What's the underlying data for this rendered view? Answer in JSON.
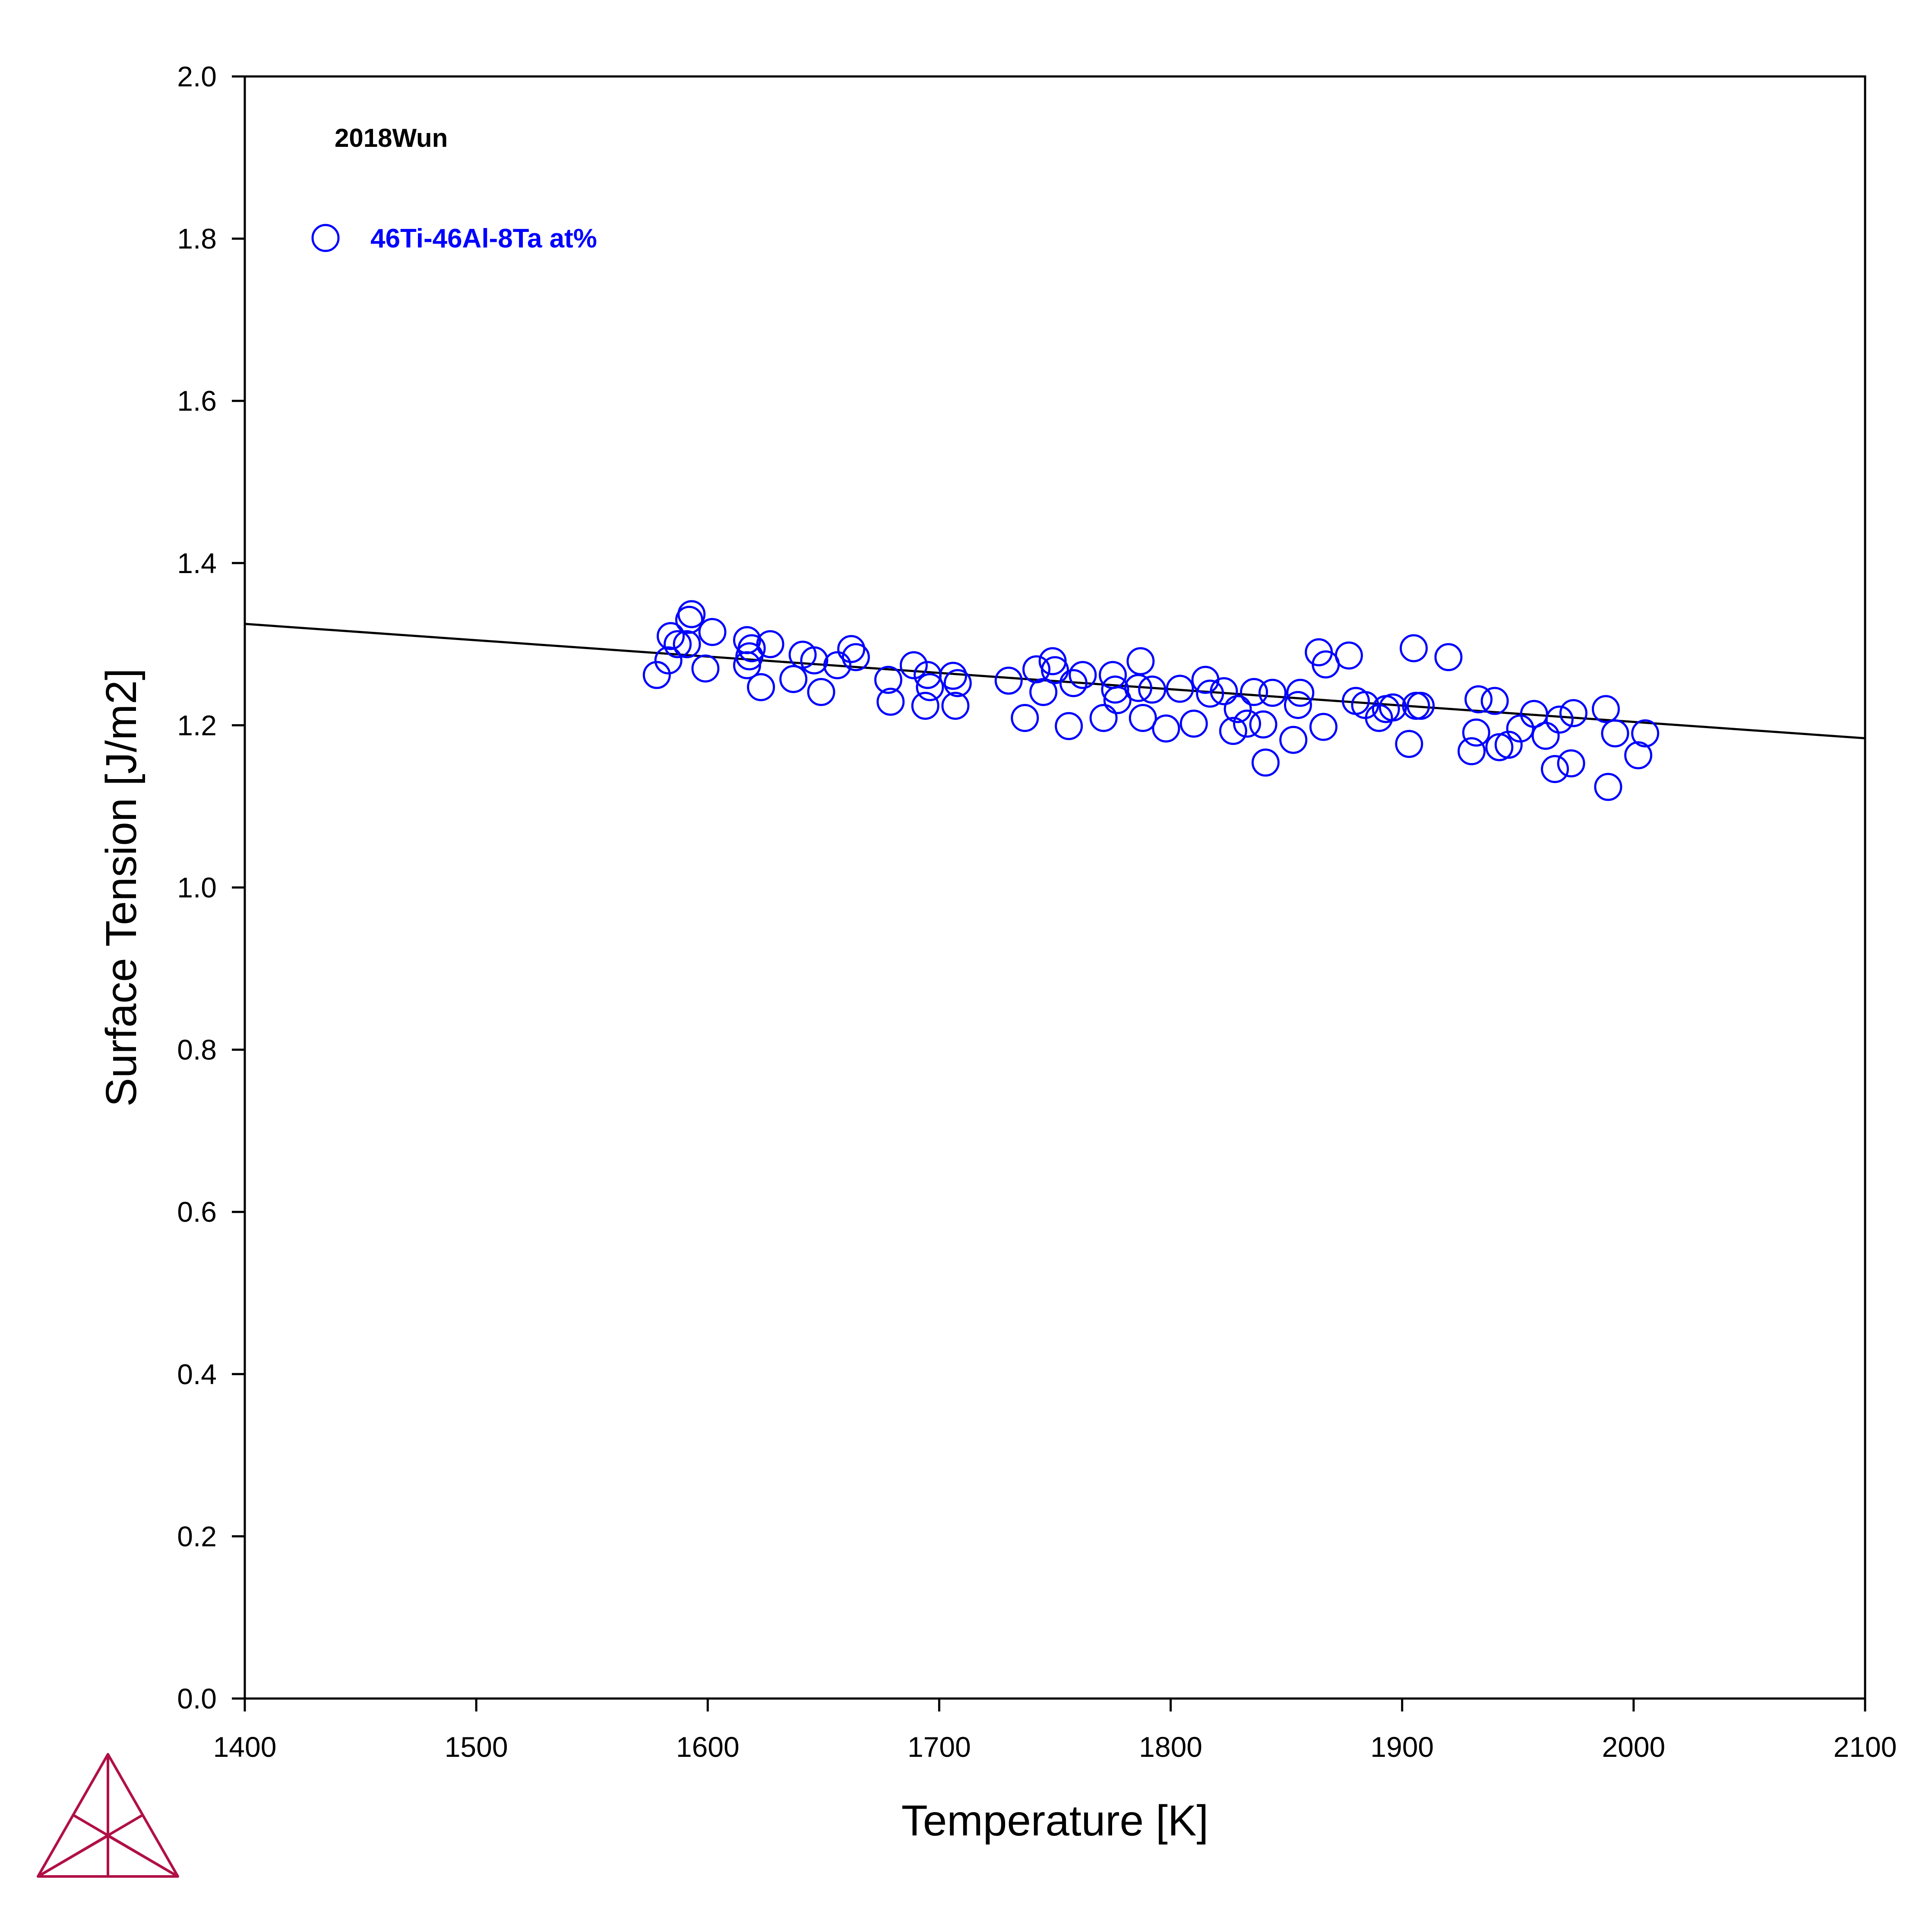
{
  "colors": {
    "background": "#ffffff",
    "axis": "#000000",
    "fit_line": "#000000",
    "markers": "#0000ff",
    "logo": "#b01045"
  },
  "logo": {
    "icon": "thermo-calc-triangle-logo"
  },
  "chart_data": {
    "type": "scatter",
    "title": "",
    "xlabel": "Temperature [K]",
    "ylabel": "Surface Tension [J/m2]",
    "xlim": [
      1400,
      2100
    ],
    "ylim": [
      0.0,
      2.0
    ],
    "x_ticks": [
      1400,
      1500,
      1600,
      1700,
      1800,
      1900,
      2000,
      2100
    ],
    "y_ticks": [
      0.0,
      0.2,
      0.4,
      0.6,
      0.8,
      1.0,
      1.2,
      1.4,
      1.6,
      1.8,
      2.0
    ],
    "x_tick_labels": [
      "1400",
      "1500",
      "1600",
      "1700",
      "1800",
      "1900",
      "2000",
      "2100"
    ],
    "y_tick_labels": [
      "0.0",
      "0.2",
      "0.4",
      "0.6",
      "0.8",
      "1.0",
      "1.2",
      "1.4",
      "1.6",
      "1.8",
      "2.0"
    ],
    "grid": false,
    "dataset_label": "2018Wun",
    "legend": {
      "position": "top-left",
      "entries": [
        "46Ti-46Al-8Ta at%"
      ]
    },
    "series": [
      {
        "name": "",
        "kind": "line",
        "x": [
          1400,
          2100
        ],
        "y": [
          1.325,
          1.184
        ]
      },
      {
        "name": "46Ti-46Al-8Ta at%",
        "kind": "scatter",
        "marker": "open-circle",
        "points": [
          [
            1578,
            1.262
          ],
          [
            1583,
            1.28
          ],
          [
            1584,
            1.31
          ],
          [
            1587,
            1.3
          ],
          [
            1591,
            1.3
          ],
          [
            1592,
            1.33
          ],
          [
            1593,
            1.337
          ],
          [
            1599,
            1.27
          ],
          [
            1602,
            1.315
          ],
          [
            1617,
            1.305
          ],
          [
            1617,
            1.274
          ],
          [
            1618,
            1.285
          ],
          [
            1619,
            1.295
          ],
          [
            1623,
            1.247
          ],
          [
            1627,
            1.3
          ],
          [
            1637,
            1.257
          ],
          [
            1641,
            1.287
          ],
          [
            1646,
            1.28
          ],
          [
            1649,
            1.241
          ],
          [
            1656,
            1.274
          ],
          [
            1662,
            1.294
          ],
          [
            1664,
            1.284
          ],
          [
            1678,
            1.256
          ],
          [
            1679,
            1.229
          ],
          [
            1689,
            1.274
          ],
          [
            1694,
            1.224
          ],
          [
            1695,
            1.262
          ],
          [
            1696,
            1.247
          ],
          [
            1706,
            1.261
          ],
          [
            1707,
            1.224
          ],
          [
            1708,
            1.252
          ],
          [
            1730,
            1.255
          ],
          [
            1737,
            1.209
          ],
          [
            1742,
            1.269
          ],
          [
            1745,
            1.241
          ],
          [
            1749,
            1.279
          ],
          [
            1750,
            1.268
          ],
          [
            1756,
            1.199
          ],
          [
            1758,
            1.252
          ],
          [
            1762,
            1.262
          ],
          [
            1771,
            1.209
          ],
          [
            1775,
            1.262
          ],
          [
            1776,
            1.244
          ],
          [
            1777,
            1.231
          ],
          [
            1786,
            1.246
          ],
          [
            1787,
            1.279
          ],
          [
            1788,
            1.209
          ],
          [
            1792,
            1.244
          ],
          [
            1798,
            1.196
          ],
          [
            1804,
            1.245
          ],
          [
            1810,
            1.202
          ],
          [
            1815,
            1.256
          ],
          [
            1817,
            1.239
          ],
          [
            1823,
            1.242
          ],
          [
            1827,
            1.193
          ],
          [
            1829,
            1.22
          ],
          [
            1833,
            1.202
          ],
          [
            1836,
            1.241
          ],
          [
            1840,
            1.201
          ],
          [
            1841,
            1.154
          ],
          [
            1844,
            1.24
          ],
          [
            1853,
            1.182
          ],
          [
            1855,
            1.225
          ],
          [
            1856,
            1.24
          ],
          [
            1864,
            1.29
          ],
          [
            1866,
            1.198
          ],
          [
            1867,
            1.275
          ],
          [
            1877,
            1.286
          ],
          [
            1880,
            1.23
          ],
          [
            1884,
            1.225
          ],
          [
            1890,
            1.209
          ],
          [
            1893,
            1.22
          ],
          [
            1896,
            1.222
          ],
          [
            1903,
            1.177
          ],
          [
            1905,
            1.295
          ],
          [
            1906,
            1.224
          ],
          [
            1908,
            1.224
          ],
          [
            1920,
            1.284
          ],
          [
            1930,
            1.168
          ],
          [
            1932,
            1.191
          ],
          [
            1933,
            1.232
          ],
          [
            1940,
            1.23
          ],
          [
            1942,
            1.173
          ],
          [
            1946,
            1.176
          ],
          [
            1951,
            1.196
          ],
          [
            1957,
            1.214
          ],
          [
            1962,
            1.187
          ],
          [
            1966,
            1.146
          ],
          [
            1968,
            1.207
          ],
          [
            1973,
            1.153
          ],
          [
            1974,
            1.215
          ],
          [
            1988,
            1.22
          ],
          [
            1989,
            1.124
          ],
          [
            1992,
            1.19
          ],
          [
            2002,
            1.163
          ],
          [
            2005,
            1.19
          ]
        ]
      }
    ]
  }
}
